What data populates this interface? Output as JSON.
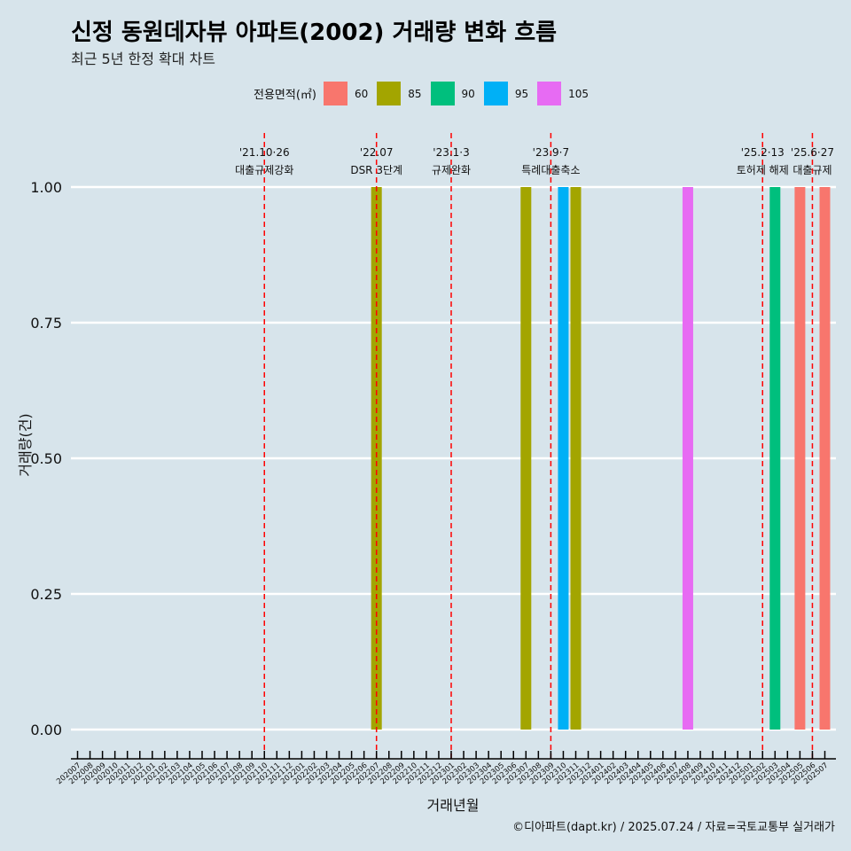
{
  "header": {
    "title": "신정 동원데자뷰 아파트(2002) 거래량 변화 흐름",
    "subtitle": "최근 5년 한정 확대 차트"
  },
  "legend": {
    "title": "전용면적(㎡)",
    "items": [
      {
        "label": "60",
        "color": "#f8766d"
      },
      {
        "label": "85",
        "color": "#a3a500"
      },
      {
        "label": "90",
        "color": "#00bf7d"
      },
      {
        "label": "95",
        "color": "#00b0f6"
      },
      {
        "label": "105",
        "color": "#e76bf3"
      }
    ]
  },
  "caption": "©디아파트(dapt.kr) / 2025.07.24 / 자료=국토교통부 실거래가",
  "chart_data": {
    "type": "bar",
    "stacked": true,
    "xlabel": "거래년월",
    "ylabel": "거래량(건)",
    "ylim": [
      0,
      1
    ],
    "yticks": [
      "0.00",
      "0.25",
      "0.50",
      "0.75",
      "1.00"
    ],
    "grid": true,
    "legend_position": "top",
    "categories": [
      "202007",
      "202008",
      "202009",
      "202010",
      "202011",
      "202012",
      "202101",
      "202102",
      "202103",
      "202104",
      "202105",
      "202106",
      "202107",
      "202108",
      "202109",
      "202110",
      "202111",
      "202112",
      "202201",
      "202202",
      "202203",
      "202204",
      "202205",
      "202206",
      "202207",
      "202208",
      "202209",
      "202210",
      "202211",
      "202212",
      "202301",
      "202302",
      "202303",
      "202304",
      "202305",
      "202306",
      "202307",
      "202308",
      "202309",
      "202310",
      "202311",
      "202312",
      "202401",
      "202402",
      "202403",
      "202404",
      "202405",
      "202406",
      "202407",
      "202408",
      "202409",
      "202410",
      "202411",
      "202412",
      "202501",
      "202502",
      "202503",
      "202504",
      "202505",
      "202506",
      "202507"
    ],
    "series": [
      {
        "name": "60",
        "color": "#f8766d",
        "values": [
          0,
          0,
          0,
          0,
          0,
          0,
          0,
          0,
          0,
          0,
          0,
          0,
          0,
          0,
          0,
          0,
          0,
          0,
          0,
          0,
          0,
          0,
          0,
          0,
          0,
          0,
          0,
          0,
          0,
          0,
          0,
          0,
          0,
          0,
          0,
          0,
          0,
          0,
          0,
          0,
          0,
          0,
          0,
          0,
          0,
          0,
          0,
          0,
          0,
          0,
          0,
          0,
          0,
          0,
          0,
          0,
          0,
          0,
          1,
          0,
          1
        ]
      },
      {
        "name": "85",
        "color": "#a3a500",
        "values": [
          0,
          0,
          0,
          0,
          0,
          0,
          0,
          0,
          0,
          0,
          0,
          0,
          0,
          0,
          0,
          0,
          0,
          0,
          0,
          0,
          0,
          0,
          0,
          0,
          1,
          0,
          0,
          0,
          0,
          0,
          0,
          0,
          0,
          0,
          0,
          0,
          1,
          0,
          0,
          0,
          1,
          0,
          0,
          0,
          0,
          0,
          0,
          0,
          0,
          0,
          0,
          0,
          0,
          0,
          0,
          0,
          0,
          0,
          0,
          0,
          0
        ]
      },
      {
        "name": "90",
        "color": "#00bf7d",
        "values": [
          0,
          0,
          0,
          0,
          0,
          0,
          0,
          0,
          0,
          0,
          0,
          0,
          0,
          0,
          0,
          0,
          0,
          0,
          0,
          0,
          0,
          0,
          0,
          0,
          0,
          0,
          0,
          0,
          0,
          0,
          0,
          0,
          0,
          0,
          0,
          0,
          0,
          0,
          0,
          0,
          0,
          0,
          0,
          0,
          0,
          0,
          0,
          0,
          0,
          0,
          0,
          0,
          0,
          0,
          0,
          0,
          1,
          0,
          0,
          0,
          0
        ]
      },
      {
        "name": "95",
        "color": "#00b0f6",
        "values": [
          0,
          0,
          0,
          0,
          0,
          0,
          0,
          0,
          0,
          0,
          0,
          0,
          0,
          0,
          0,
          0,
          0,
          0,
          0,
          0,
          0,
          0,
          0,
          0,
          0,
          0,
          0,
          0,
          0,
          0,
          0,
          0,
          0,
          0,
          0,
          0,
          0,
          0,
          0,
          1,
          0,
          0,
          0,
          0,
          0,
          0,
          0,
          0,
          0,
          0,
          0,
          0,
          0,
          0,
          0,
          0,
          0,
          0,
          0,
          0,
          0
        ]
      },
      {
        "name": "105",
        "color": "#e76bf3",
        "values": [
          0,
          0,
          0,
          0,
          0,
          0,
          0,
          0,
          0,
          0,
          0,
          0,
          0,
          0,
          0,
          0,
          0,
          0,
          0,
          0,
          0,
          0,
          0,
          0,
          0,
          0,
          0,
          0,
          0,
          0,
          0,
          0,
          0,
          0,
          0,
          0,
          0,
          0,
          0,
          0,
          0,
          0,
          0,
          0,
          0,
          0,
          0,
          0,
          0,
          1,
          0,
          0,
          0,
          0,
          0,
          0,
          0,
          0,
          0,
          0,
          0
        ]
      }
    ],
    "annotations": [
      {
        "at": "202110",
        "date": "'21.10·26",
        "label": "대출규제강화"
      },
      {
        "at": "202207",
        "date": "'22.07",
        "label": "DSR 3단계"
      },
      {
        "at": "202301",
        "date": "'23.1·3",
        "label": "규제완화"
      },
      {
        "at": "202309",
        "date": "'23.9·7",
        "label": "특례대출축소"
      },
      {
        "at": "202502",
        "date": "'25.2·13",
        "label": "토허제 해제"
      },
      {
        "at": "202506",
        "date": "'25.6·27",
        "label": "대출규제"
      }
    ]
  }
}
